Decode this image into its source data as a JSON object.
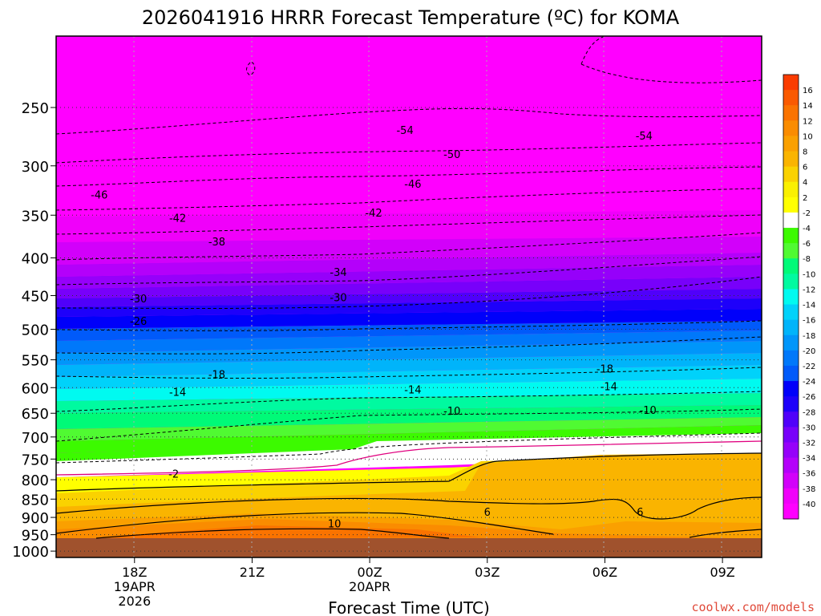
{
  "chart_data": {
    "type": "heatmap",
    "title": "2026041916 HRRR Forecast Temperature (ºC) for KOMA",
    "xlabel": "Forecast Time (UTC)",
    "ylabel": "",
    "credit": "coolwx.com/models",
    "x_ticks": [
      {
        "hour": 18,
        "label": "18Z",
        "sub1": "19APR",
        "sub2": "2026"
      },
      {
        "hour": 21,
        "label": "21Z",
        "sub1": "",
        "sub2": ""
      },
      {
        "hour": 24,
        "label": "00Z",
        "sub1": "20APR",
        "sub2": ""
      },
      {
        "hour": 27,
        "label": "03Z",
        "sub1": "",
        "sub2": ""
      },
      {
        "hour": 30,
        "label": "06Z",
        "sub1": "",
        "sub2": ""
      },
      {
        "hour": 33,
        "label": "09Z",
        "sub1": "",
        "sub2": ""
      }
    ],
    "xlim_hours": [
      16,
      34
    ],
    "y_ticks": [
      250,
      300,
      350,
      400,
      450,
      500,
      550,
      600,
      650,
      700,
      750,
      800,
      850,
      900,
      950,
      1000
    ],
    "ylim_hpa": [
      200,
      1020
    ],
    "y_scale": "log-pressure",
    "grid": true,
    "colorbar": {
      "levels": [
        16,
        14,
        12,
        10,
        8,
        6,
        4,
        2,
        -2,
        -4,
        -6,
        -8,
        -10,
        -12,
        -14,
        -16,
        -18,
        -20,
        -22,
        -24,
        -26,
        -28,
        -30,
        -32,
        -34,
        -36,
        -38,
        -40
      ],
      "colors": [
        "#fa3c00",
        "#fa5a00",
        "#fa7300",
        "#fa8c00",
        "#faa000",
        "#fab400",
        "#fad200",
        "#faf000",
        "#ffff00",
        "#ffffff",
        "#3cfa00",
        "#50fa32",
        "#00fa78",
        "#00faa0",
        "#00faf0",
        "#00d2fa",
        "#00b4fa",
        "#0096fa",
        "#0078fa",
        "#005afa",
        "#0000fa",
        "#1e00fa",
        "#5000fa",
        "#7800fa",
        "#9600fa",
        "#b400fa",
        "#d200fa",
        "#f000fa",
        "#ff00ff"
      ]
    },
    "isotherm_labels": [
      {
        "t": "-54",
        "hour": 24.9,
        "hpa": 268
      },
      {
        "t": "-54",
        "hour": 31.0,
        "hpa": 273
      },
      {
        "t": "-50",
        "hour": 26.1,
        "hpa": 289
      },
      {
        "t": "-46",
        "hour": 17.1,
        "hpa": 328
      },
      {
        "t": "-46",
        "hour": 25.1,
        "hpa": 317
      },
      {
        "t": "-42",
        "hour": 19.1,
        "hpa": 353
      },
      {
        "t": "-42",
        "hour": 24.1,
        "hpa": 347
      },
      {
        "t": "-38",
        "hour": 20.1,
        "hpa": 380
      },
      {
        "t": "-34",
        "hour": 23.2,
        "hpa": 418
      },
      {
        "t": "-30",
        "hour": 18.1,
        "hpa": 454
      },
      {
        "t": "-30",
        "hour": 23.2,
        "hpa": 452
      },
      {
        "t": "-26",
        "hour": 18.1,
        "hpa": 487
      },
      {
        "t": "-18",
        "hour": 30.0,
        "hpa": 565
      },
      {
        "t": "-18",
        "hour": 20.1,
        "hpa": 575
      },
      {
        "t": "-14",
        "hour": 19.1,
        "hpa": 608
      },
      {
        "t": "-14",
        "hour": 25.1,
        "hpa": 603
      },
      {
        "t": "-14",
        "hour": 30.1,
        "hpa": 597
      },
      {
        "t": "-10",
        "hour": 26.1,
        "hpa": 645
      },
      {
        "t": "-10",
        "hour": 31.1,
        "hpa": 643
      },
      {
        "t": "-2",
        "hour": 19.0,
        "hpa": 785
      },
      {
        "t": "6",
        "hour": 27.0,
        "hpa": 884
      },
      {
        "t": "6",
        "hour": 30.9,
        "hpa": 884
      },
      {
        "t": "10",
        "hour": 23.1,
        "hpa": 917
      }
    ],
    "annotations": []
  }
}
